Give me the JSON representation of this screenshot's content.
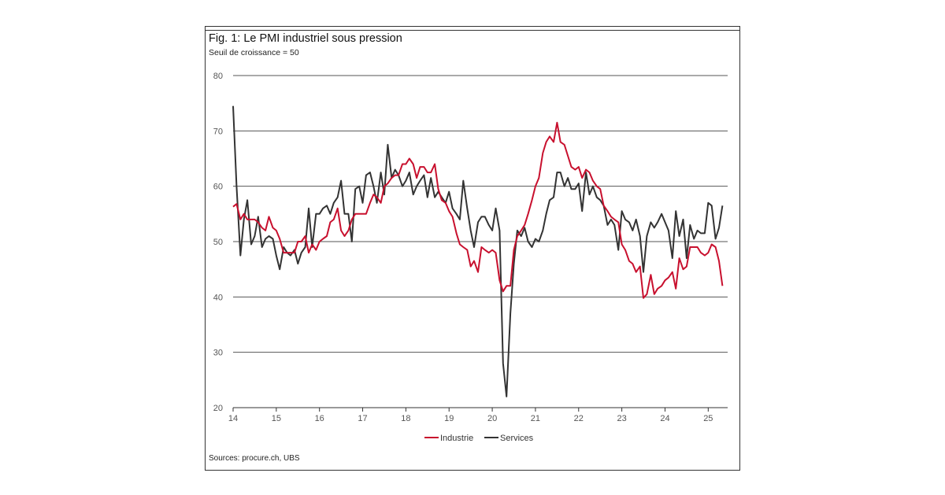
{
  "chart_data": {
    "type": "line",
    "title": "Fig. 1: Le PMI industriel sous pression",
    "subtitle": "Seuil de croissance = 50",
    "source": "Sources: procure.ch, UBS",
    "ylim": [
      20,
      80
    ],
    "yticks": [
      20,
      30,
      40,
      50,
      60,
      70,
      80
    ],
    "xlim": [
      2014,
      2025.45
    ],
    "xticks": [
      {
        "value": 2014,
        "label": "14"
      },
      {
        "value": 2015,
        "label": "15"
      },
      {
        "value": 2016,
        "label": "16"
      },
      {
        "value": 2017,
        "label": "17"
      },
      {
        "value": 2018,
        "label": "18"
      },
      {
        "value": 2019,
        "label": "19"
      },
      {
        "value": 2020,
        "label": "20"
      },
      {
        "value": 2021,
        "label": "21"
      },
      {
        "value": 2022,
        "label": "22"
      },
      {
        "value": 2023,
        "label": "23"
      },
      {
        "value": 2024,
        "label": "24"
      },
      {
        "value": 2025,
        "label": "25"
      }
    ],
    "grid": true,
    "legend_position": "bottom",
    "series": [
      {
        "name": "Industrie",
        "color": "#c8102e",
        "points": [
          [
            2014.0,
            56.3
          ],
          [
            2014.08,
            56.8
          ],
          [
            2014.17,
            54.0
          ],
          [
            2014.25,
            55.0
          ],
          [
            2014.33,
            54.0
          ],
          [
            2014.42,
            54.0
          ],
          [
            2014.5,
            54.0
          ],
          [
            2014.58,
            53.5
          ],
          [
            2014.67,
            52.5
          ],
          [
            2014.75,
            52.0
          ],
          [
            2014.83,
            54.5
          ],
          [
            2014.92,
            52.5
          ],
          [
            2015.0,
            52.0
          ],
          [
            2015.08,
            50.5
          ],
          [
            2015.17,
            48.0
          ],
          [
            2015.25,
            48.0
          ],
          [
            2015.33,
            48.0
          ],
          [
            2015.42,
            48.0
          ],
          [
            2015.5,
            50.0
          ],
          [
            2015.58,
            50.0
          ],
          [
            2015.67,
            51.0
          ],
          [
            2015.75,
            48.0
          ],
          [
            2015.83,
            49.5
          ],
          [
            2015.92,
            48.5
          ],
          [
            2016.0,
            50.0
          ],
          [
            2016.08,
            50.5
          ],
          [
            2016.17,
            51.0
          ],
          [
            2016.25,
            53.5
          ],
          [
            2016.33,
            54.0
          ],
          [
            2016.42,
            56.0
          ],
          [
            2016.5,
            52.0
          ],
          [
            2016.58,
            51.0
          ],
          [
            2016.67,
            52.0
          ],
          [
            2016.75,
            54.0
          ],
          [
            2016.83,
            55.0
          ],
          [
            2016.92,
            55.0
          ],
          [
            2017.0,
            55.0
          ],
          [
            2017.08,
            55.0
          ],
          [
            2017.17,
            57.0
          ],
          [
            2017.25,
            58.5
          ],
          [
            2017.33,
            58.0
          ],
          [
            2017.42,
            57.0
          ],
          [
            2017.5,
            60.0
          ],
          [
            2017.58,
            60.5
          ],
          [
            2017.67,
            61.5
          ],
          [
            2017.75,
            62.0
          ],
          [
            2017.83,
            62.0
          ],
          [
            2017.92,
            64.0
          ],
          [
            2018.0,
            64.0
          ],
          [
            2018.08,
            65.0
          ],
          [
            2018.17,
            64.0
          ],
          [
            2018.25,
            61.5
          ],
          [
            2018.33,
            63.5
          ],
          [
            2018.42,
            63.5
          ],
          [
            2018.5,
            62.5
          ],
          [
            2018.58,
            62.5
          ],
          [
            2018.67,
            64.0
          ],
          [
            2018.75,
            59.5
          ],
          [
            2018.83,
            57.5
          ],
          [
            2018.92,
            57.0
          ],
          [
            2019.0,
            55.5
          ],
          [
            2019.08,
            54.5
          ],
          [
            2019.17,
            51.5
          ],
          [
            2019.25,
            49.5
          ],
          [
            2019.33,
            49.0
          ],
          [
            2019.42,
            48.5
          ],
          [
            2019.5,
            45.5
          ],
          [
            2019.58,
            46.5
          ],
          [
            2019.67,
            44.5
          ],
          [
            2019.75,
            49.0
          ],
          [
            2019.83,
            48.5
          ],
          [
            2019.92,
            48.0
          ],
          [
            2020.0,
            48.5
          ],
          [
            2020.08,
            48.0
          ],
          [
            2020.17,
            43.0
          ],
          [
            2020.25,
            41.0
          ],
          [
            2020.33,
            42.0
          ],
          [
            2020.42,
            42.0
          ],
          [
            2020.5,
            48.5
          ],
          [
            2020.58,
            51.0
          ],
          [
            2020.67,
            52.0
          ],
          [
            2020.75,
            53.0
          ],
          [
            2020.83,
            55.0
          ],
          [
            2020.92,
            57.5
          ],
          [
            2021.0,
            60.0
          ],
          [
            2021.08,
            61.5
          ],
          [
            2021.17,
            66.0
          ],
          [
            2021.25,
            68.0
          ],
          [
            2021.33,
            69.0
          ],
          [
            2021.42,
            68.0
          ],
          [
            2021.5,
            71.5
          ],
          [
            2021.58,
            68.0
          ],
          [
            2021.67,
            67.5
          ],
          [
            2021.75,
            65.5
          ],
          [
            2021.83,
            63.5
          ],
          [
            2021.92,
            63.0
          ],
          [
            2022.0,
            63.5
          ],
          [
            2022.08,
            61.5
          ],
          [
            2022.17,
            63.0
          ],
          [
            2022.25,
            62.5
          ],
          [
            2022.33,
            61.0
          ],
          [
            2022.42,
            60.0
          ],
          [
            2022.5,
            59.5
          ],
          [
            2022.58,
            56.5
          ],
          [
            2022.67,
            55.5
          ],
          [
            2022.75,
            54.5
          ],
          [
            2022.83,
            54.0
          ],
          [
            2022.92,
            53.5
          ],
          [
            2023.0,
            49.5
          ],
          [
            2023.08,
            48.5
          ],
          [
            2023.17,
            46.5
          ],
          [
            2023.25,
            46.0
          ],
          [
            2023.33,
            44.5
          ],
          [
            2023.42,
            45.5
          ],
          [
            2023.5,
            39.8
          ],
          [
            2023.58,
            40.5
          ],
          [
            2023.67,
            44.0
          ],
          [
            2023.75,
            40.5
          ],
          [
            2023.83,
            41.5
          ],
          [
            2023.92,
            42.0
          ],
          [
            2024.0,
            43.0
          ],
          [
            2024.08,
            43.5
          ],
          [
            2024.17,
            44.5
          ],
          [
            2024.25,
            41.5
          ],
          [
            2024.33,
            47.0
          ],
          [
            2024.42,
            45.0
          ],
          [
            2024.5,
            45.5
          ],
          [
            2024.58,
            49.0
          ],
          [
            2024.67,
            49.0
          ],
          [
            2024.75,
            49.0
          ],
          [
            2024.83,
            48.0
          ],
          [
            2024.92,
            47.5
          ],
          [
            2025.0,
            48.0
          ],
          [
            2025.08,
            49.5
          ],
          [
            2025.17,
            49.0
          ],
          [
            2025.25,
            46.5
          ],
          [
            2025.33,
            42.0
          ]
        ]
      },
      {
        "name": "Services",
        "color": "#333333",
        "points": [
          [
            2014.0,
            74.5
          ],
          [
            2014.08,
            60.0
          ],
          [
            2014.17,
            47.5
          ],
          [
            2014.25,
            54.0
          ],
          [
            2014.33,
            57.5
          ],
          [
            2014.42,
            49.5
          ],
          [
            2014.5,
            51.0
          ],
          [
            2014.58,
            54.5
          ],
          [
            2014.67,
            49.0
          ],
          [
            2014.75,
            50.5
          ],
          [
            2014.83,
            51.0
          ],
          [
            2014.92,
            50.5
          ],
          [
            2015.0,
            47.5
          ],
          [
            2015.08,
            45.0
          ],
          [
            2015.17,
            49.0
          ],
          [
            2015.25,
            48.0
          ],
          [
            2015.33,
            47.5
          ],
          [
            2015.42,
            48.5
          ],
          [
            2015.5,
            46.0
          ],
          [
            2015.58,
            48.0
          ],
          [
            2015.67,
            49.0
          ],
          [
            2015.75,
            56.0
          ],
          [
            2015.83,
            49.0
          ],
          [
            2015.92,
            55.0
          ],
          [
            2016.0,
            55.0
          ],
          [
            2016.08,
            56.0
          ],
          [
            2016.17,
            56.5
          ],
          [
            2016.25,
            55.0
          ],
          [
            2016.33,
            57.0
          ],
          [
            2016.42,
            58.0
          ],
          [
            2016.5,
            61.0
          ],
          [
            2016.58,
            55.0
          ],
          [
            2016.67,
            55.0
          ],
          [
            2016.75,
            50.0
          ],
          [
            2016.83,
            59.5
          ],
          [
            2016.92,
            60.0
          ],
          [
            2017.0,
            57.0
          ],
          [
            2017.08,
            62.0
          ],
          [
            2017.17,
            62.5
          ],
          [
            2017.25,
            60.0
          ],
          [
            2017.33,
            57.0
          ],
          [
            2017.42,
            62.5
          ],
          [
            2017.5,
            58.5
          ],
          [
            2017.58,
            67.5
          ],
          [
            2017.67,
            61.5
          ],
          [
            2017.75,
            63.0
          ],
          [
            2017.83,
            62.0
          ],
          [
            2017.92,
            60.0
          ],
          [
            2018.0,
            61.0
          ],
          [
            2018.08,
            62.5
          ],
          [
            2018.17,
            58.5
          ],
          [
            2018.25,
            60.0
          ],
          [
            2018.33,
            61.0
          ],
          [
            2018.42,
            62.0
          ],
          [
            2018.5,
            58.0
          ],
          [
            2018.58,
            61.5
          ],
          [
            2018.67,
            58.0
          ],
          [
            2018.75,
            59.0
          ],
          [
            2018.83,
            58.0
          ],
          [
            2018.92,
            57.0
          ],
          [
            2019.0,
            59.0
          ],
          [
            2019.08,
            56.0
          ],
          [
            2019.17,
            55.0
          ],
          [
            2019.25,
            54.0
          ],
          [
            2019.33,
            61.0
          ],
          [
            2019.42,
            56.0
          ],
          [
            2019.5,
            52.0
          ],
          [
            2019.58,
            49.0
          ],
          [
            2019.67,
            53.5
          ],
          [
            2019.75,
            54.5
          ],
          [
            2019.83,
            54.5
          ],
          [
            2019.92,
            53.0
          ],
          [
            2020.0,
            52.0
          ],
          [
            2020.08,
            56.0
          ],
          [
            2020.17,
            52.0
          ],
          [
            2020.25,
            28.0
          ],
          [
            2020.33,
            22.0
          ],
          [
            2020.42,
            37.0
          ],
          [
            2020.5,
            46.0
          ],
          [
            2020.58,
            52.0
          ],
          [
            2020.67,
            51.0
          ],
          [
            2020.75,
            52.5
          ],
          [
            2020.83,
            50.0
          ],
          [
            2020.92,
            49.0
          ],
          [
            2021.0,
            50.5
          ],
          [
            2021.08,
            50.0
          ],
          [
            2021.17,
            52.0
          ],
          [
            2021.25,
            55.0
          ],
          [
            2021.33,
            57.5
          ],
          [
            2021.42,
            58.0
          ],
          [
            2021.5,
            62.5
          ],
          [
            2021.58,
            62.5
          ],
          [
            2021.67,
            60.0
          ],
          [
            2021.75,
            61.5
          ],
          [
            2021.83,
            59.5
          ],
          [
            2021.92,
            59.5
          ],
          [
            2022.0,
            60.5
          ],
          [
            2022.08,
            55.5
          ],
          [
            2022.17,
            62.5
          ],
          [
            2022.25,
            58.5
          ],
          [
            2022.33,
            60.0
          ],
          [
            2022.42,
            58.0
          ],
          [
            2022.5,
            57.5
          ],
          [
            2022.58,
            56.5
          ],
          [
            2022.67,
            53.0
          ],
          [
            2022.75,
            54.0
          ],
          [
            2022.83,
            53.0
          ],
          [
            2022.92,
            48.5
          ],
          [
            2023.0,
            55.5
          ],
          [
            2023.08,
            54.0
          ],
          [
            2023.17,
            53.5
          ],
          [
            2023.25,
            52.0
          ],
          [
            2023.33,
            54.0
          ],
          [
            2023.42,
            51.0
          ],
          [
            2023.5,
            44.5
          ],
          [
            2023.58,
            51.0
          ],
          [
            2023.67,
            53.5
          ],
          [
            2023.75,
            52.5
          ],
          [
            2023.83,
            53.5
          ],
          [
            2023.92,
            55.0
          ],
          [
            2024.0,
            53.5
          ],
          [
            2024.08,
            52.0
          ],
          [
            2024.17,
            47.0
          ],
          [
            2024.25,
            55.5
          ],
          [
            2024.33,
            51.0
          ],
          [
            2024.42,
            54.0
          ],
          [
            2024.5,
            47.0
          ],
          [
            2024.58,
            53.0
          ],
          [
            2024.67,
            50.5
          ],
          [
            2024.75,
            52.0
          ],
          [
            2024.83,
            51.5
          ],
          [
            2024.92,
            51.5
          ],
          [
            2025.0,
            57.0
          ],
          [
            2025.08,
            56.5
          ],
          [
            2025.17,
            50.5
          ],
          [
            2025.25,
            52.5
          ],
          [
            2025.33,
            56.5
          ]
        ]
      }
    ]
  }
}
